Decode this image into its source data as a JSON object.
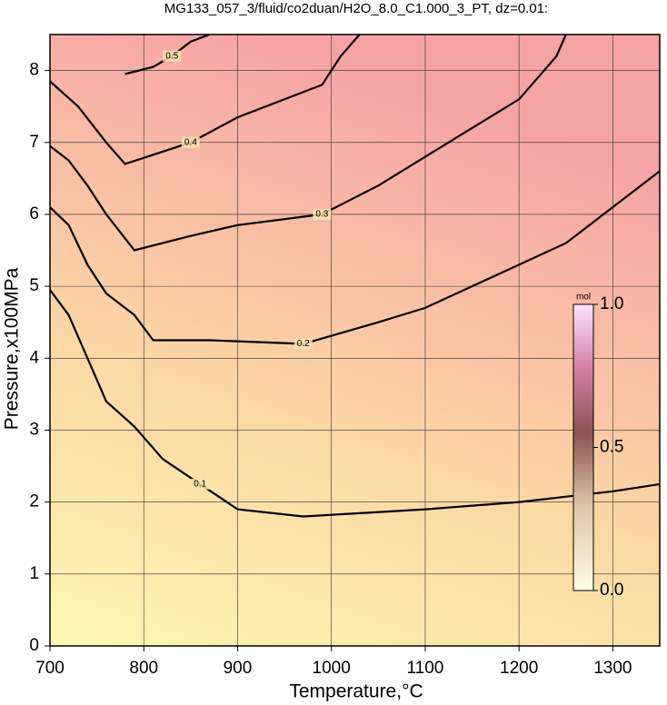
{
  "chart_data": {
    "type": "contour",
    "title": "MG133_057_3/fluid/co2duan/H2O_8.0_C1.000_3_PT, dz=0.01:",
    "x_label": "Temperature,°C",
    "y_label": "Pressure,x100MPa",
    "xlim": [
      700,
      1350
    ],
    "xticks": [
      700,
      800,
      900,
      1000,
      1100,
      1200,
      1300
    ],
    "ylim": [
      0,
      8.5
    ],
    "yticks": [
      0,
      1,
      2,
      3,
      4,
      5,
      6,
      7,
      8
    ],
    "grid": true,
    "series": [
      {
        "level": 0.1,
        "x": [
          700,
          720,
          740,
          760,
          790,
          820,
          860,
          900,
          970,
          1100,
          1200,
          1300,
          1350
        ],
        "y": [
          4.95,
          4.6,
          4.0,
          3.4,
          3.05,
          2.6,
          2.25,
          1.9,
          1.8,
          1.9,
          2.0,
          2.15,
          2.25
        ]
      },
      {
        "level": 0.2,
        "x": [
          700,
          720,
          740,
          760,
          790,
          810,
          870,
          970,
          1050,
          1100,
          1150,
          1200,
          1250,
          1300,
          1350
        ],
        "y": [
          6.1,
          5.85,
          5.3,
          4.9,
          4.6,
          4.25,
          4.25,
          4.2,
          4.5,
          4.7,
          5.0,
          5.3,
          5.6,
          6.1,
          6.6
        ]
      },
      {
        "level": 0.3,
        "x": [
          700,
          720,
          740,
          760,
          790,
          850,
          900,
          990,
          1050,
          1100,
          1150,
          1200,
          1240,
          1250
        ],
        "y": [
          6.95,
          6.75,
          6.4,
          6.0,
          5.5,
          5.7,
          5.85,
          6.0,
          6.4,
          6.8,
          7.2,
          7.6,
          8.2,
          8.5
        ]
      },
      {
        "level": 0.4,
        "x": [
          700,
          730,
          760,
          780,
          850,
          900,
          990,
          1010,
          1030
        ],
        "y": [
          7.85,
          7.5,
          7.0,
          6.7,
          7.0,
          7.35,
          7.8,
          8.2,
          8.5
        ]
      },
      {
        "level": 0.5,
        "x": [
          780,
          810,
          830,
          850,
          870
        ],
        "y": [
          7.95,
          8.05,
          8.2,
          8.4,
          8.5
        ]
      }
    ],
    "colorbar": {
      "label": "mol",
      "lim": [
        0,
        1
      ],
      "ticks": [
        {
          "value": 0,
          "label": "0.0"
        },
        {
          "value": 0.5,
          "label": "0.5"
        },
        {
          "value": 1,
          "label": "1.0"
        }
      ]
    }
  }
}
